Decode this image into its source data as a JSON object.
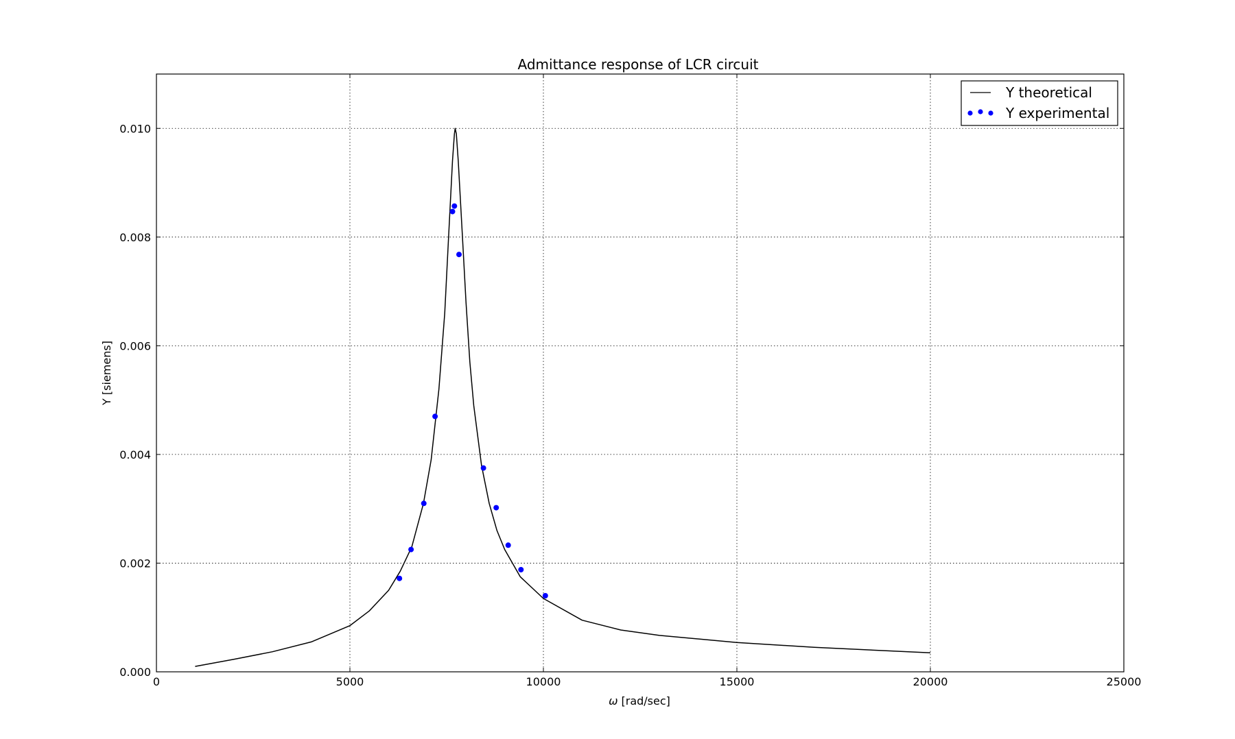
{
  "chart_data": {
    "type": "line",
    "title": "Admittance response of LCR circuit",
    "xlabel_symbol": "ω",
    "xlabel_text": "[rad/sec]",
    "ylabel": "Y [siemens]",
    "xlim": [
      0,
      25000
    ],
    "ylim": [
      0,
      0.011
    ],
    "xticks": [
      0,
      5000,
      10000,
      15000,
      20000,
      25000
    ],
    "xtick_labels": [
      "0",
      "5000",
      "10000",
      "15000",
      "20000",
      "25000"
    ],
    "yticks": [
      0,
      0.002,
      0.004,
      0.006,
      0.008,
      0.01
    ],
    "ytick_labels": [
      "0.000",
      "0.002",
      "0.004",
      "0.006",
      "0.008",
      "0.010"
    ],
    "grid": true,
    "legend_position": "top-right",
    "series": [
      {
        "name": "Y theoretical",
        "kind": "line",
        "color": "#000000",
        "x": [
          1000,
          2000,
          3000,
          4000,
          5000,
          5500,
          6000,
          6300,
          6600,
          6900,
          7100,
          7300,
          7450,
          7550,
          7650,
          7700,
          7720,
          7750,
          7800,
          7900,
          8000,
          8100,
          8200,
          8400,
          8600,
          8800,
          9000,
          9400,
          10000,
          11000,
          12000,
          13000,
          15000,
          17000,
          20000
        ],
        "y": [
          0.0001,
          0.00023,
          0.00037,
          0.00055,
          0.00085,
          0.00112,
          0.0015,
          0.00185,
          0.0023,
          0.0031,
          0.0039,
          0.0052,
          0.0066,
          0.008,
          0.0094,
          0.0099,
          0.01,
          0.0099,
          0.0094,
          0.0081,
          0.0068,
          0.0057,
          0.0049,
          0.0038,
          0.0031,
          0.0026,
          0.00225,
          0.00175,
          0.00135,
          0.00095,
          0.00077,
          0.00067,
          0.00054,
          0.00045,
          0.00035
        ]
      },
      {
        "name": "Y experimental",
        "kind": "scatter",
        "color": "#0000ff",
        "x": [
          6280,
          6580,
          6910,
          7200,
          7650,
          7700,
          7820,
          8450,
          8780,
          9090,
          9420,
          10050
        ],
        "y": [
          0.00172,
          0.00225,
          0.0031,
          0.0047,
          0.00847,
          0.00857,
          0.00768,
          0.00375,
          0.00302,
          0.00233,
          0.00188,
          0.0014
        ]
      }
    ]
  }
}
